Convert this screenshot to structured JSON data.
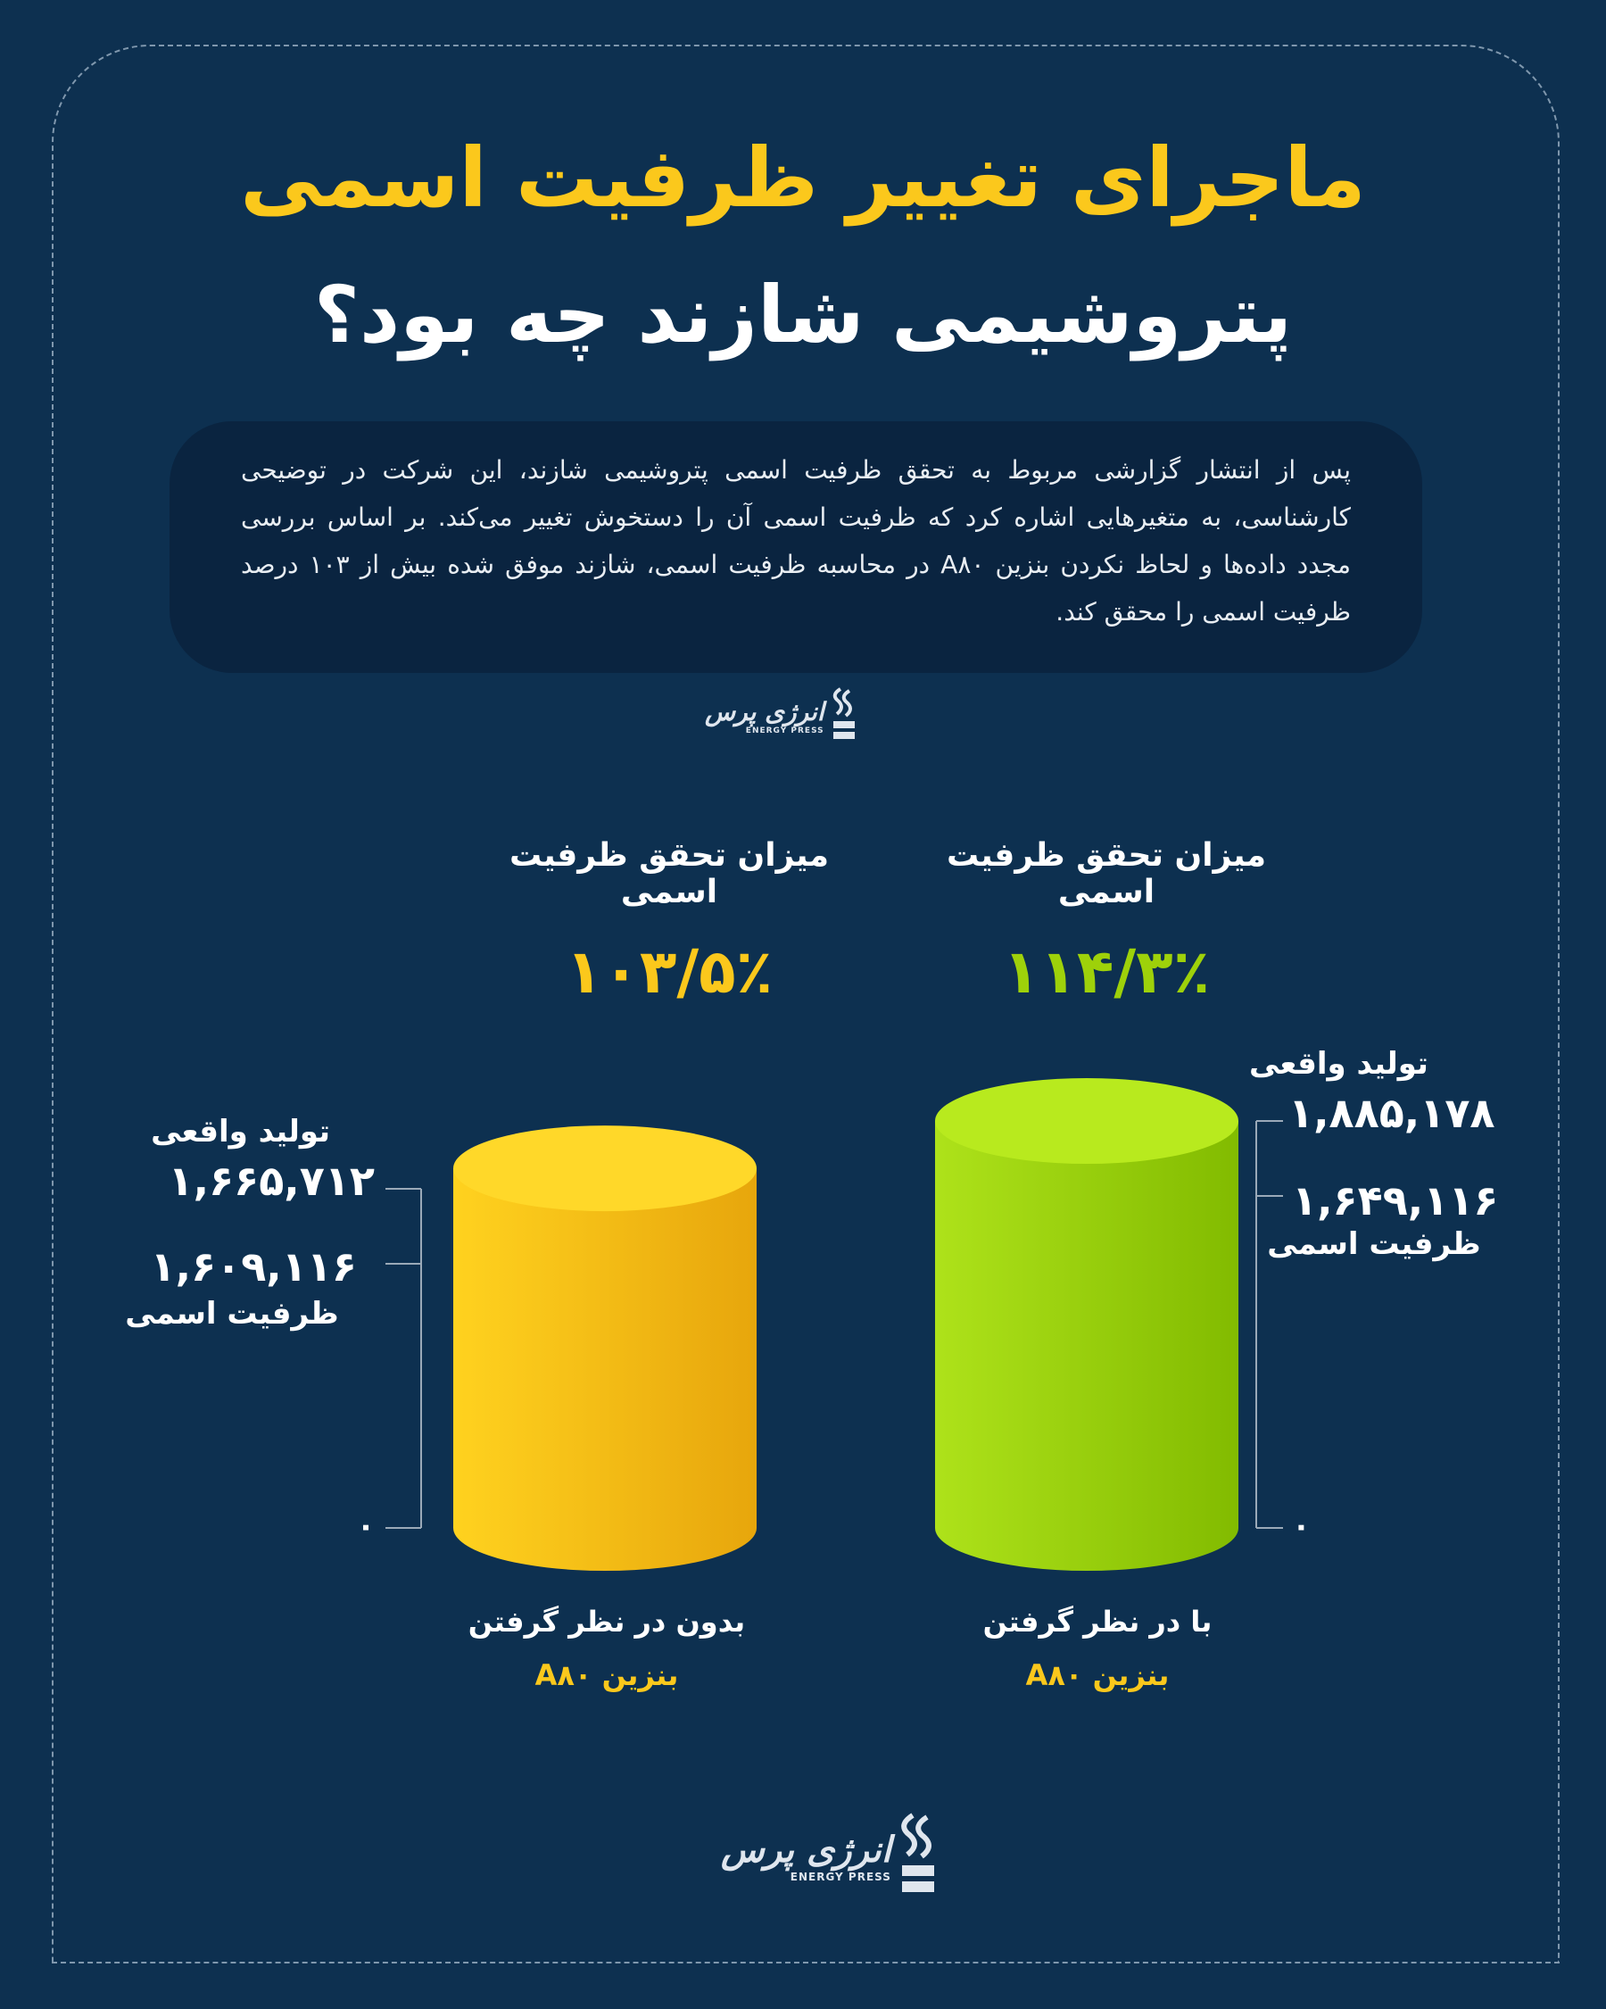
{
  "header": {
    "title_line1": "ماجرای تغییر ظرفیت اسمی",
    "title_line2": "پتروشیمی شازند چه بود؟"
  },
  "intro_text": "پس از انتشار گزارشی مربوط به تحقق ظرفیت اسمی پتروشیمی شازند، این شرکت در توضیحی کارشناسی، به متغیرهایی اشاره کرد که ظرفیت اسمی آن را دستخوش تغییر می‌کند. بر اساس بررسی مجدد داده‌ها و لحاظ نکردن بنزین A۸۰ در محاسبه ظرفیت اسمی، شازند موفق شده بیش از ۱۰۳ درصد ظرفیت اسمی را محقق کند.",
  "brand": {
    "name": "انرژی پرس",
    "tagline": "ENERGY PRESS"
  },
  "colors": {
    "background": "#0d3050",
    "accent_yellow": "#fbc81c",
    "accent_green": "#9ed10a"
  },
  "chart_data": [
    {
      "type": "bar",
      "heading": "میزان تحقق ظرفیت اسمی",
      "percent_label": "۱۱۴/۳٪",
      "percent_value": 114.3,
      "actual_label": "تولید واقعی",
      "actual_value": 1885178,
      "actual_text": "۱,۸۸۵,۱۷۸",
      "nominal_label": "ظرفیت اسمی",
      "nominal_value": 1649116,
      "nominal_text": "۱,۶۴۹,۱۱۶",
      "zero_label": "۰",
      "caption_line1": "با در نظر گرفتن",
      "caption_line2": "بنزین A۸۰",
      "color": "#9ed10a"
    },
    {
      "type": "bar",
      "heading": "میزان تحقق ظرفیت اسمی",
      "percent_label": "۱۰۳/۵٪",
      "percent_value": 103.5,
      "actual_label": "تولید واقعی",
      "actual_value": 1665712,
      "actual_text": "۱,۶۶۵,۷۱۲",
      "nominal_label": "ظرفیت اسمی",
      "nominal_value": 1609116,
      "nominal_text": "۱,۶۰۹,۱۱۶",
      "zero_label": "۰",
      "caption_line1": "بدون در نظر گرفتن",
      "caption_line2": "بنزین A۸۰",
      "color": "#fbc81c"
    }
  ]
}
